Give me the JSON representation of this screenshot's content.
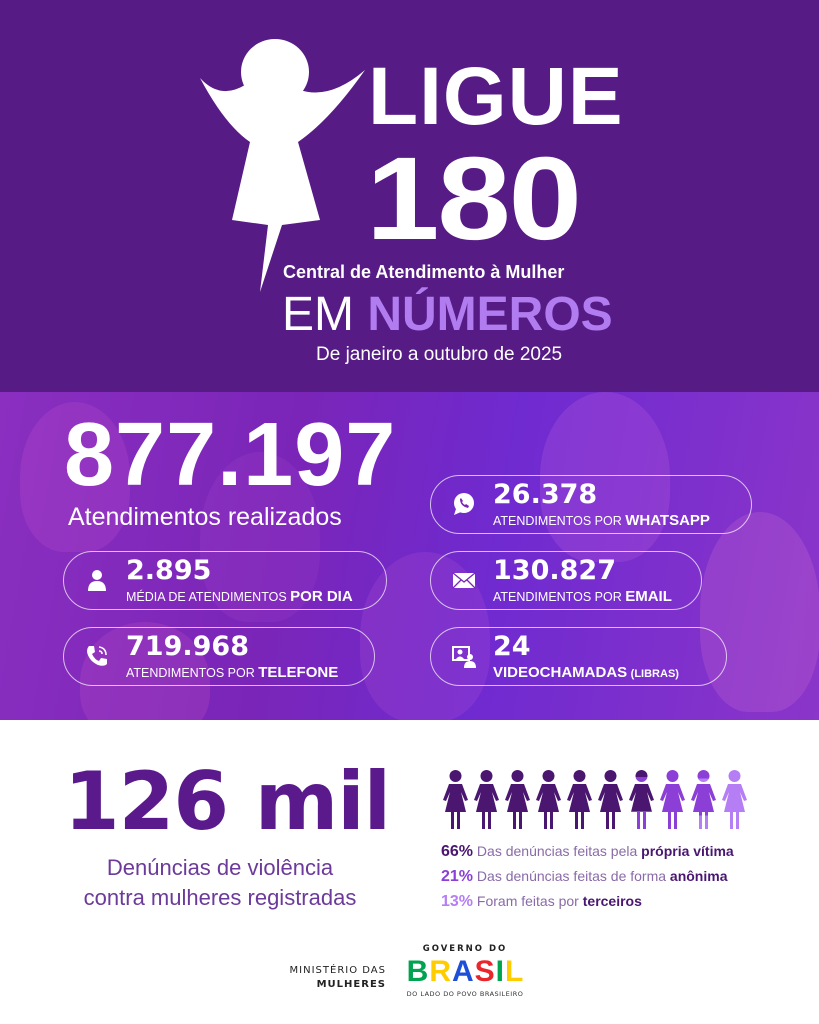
{
  "header": {
    "logo_title": "LIGUE",
    "logo_number": "180",
    "subtitle": "Central de Atendimento à Mulher",
    "em": "EM",
    "numeros": "NÚMEROS",
    "period": "De janeiro a outubro de 2025"
  },
  "total": {
    "value": "877.197",
    "label": "Atendimentos realizados"
  },
  "cards": [
    {
      "icon": "user-icon",
      "value": "2.895",
      "label": "MÉDIA DE ATENDIMENTOS",
      "highlight": "POR DIA"
    },
    {
      "icon": "phone-icon",
      "value": "719.968",
      "label": "ATENDIMENTOS POR",
      "highlight": "TELEFONE"
    },
    {
      "icon": "whatsapp-icon",
      "value": "26.378",
      "label": "ATENDIMENTOS POR",
      "highlight": "WHATSAPP"
    },
    {
      "icon": "email-icon",
      "value": "130.827",
      "label": "ATENDIMENTOS POR",
      "highlight": "EMAIL"
    },
    {
      "icon": "video-call-icon",
      "value": "24",
      "label": "VIDEOCHAMADAS",
      "highlight": "(LIBRAS)"
    }
  ],
  "complaints": {
    "value": "126 mil",
    "label_line1": "Denúncias de violência",
    "label_line2": "contra mulheres registradas",
    "breakdown": [
      {
        "pct": "66%",
        "text": "Das denúncias feitas pela",
        "bold": "própria vítima",
        "color": "#4a1670",
        "share": 66
      },
      {
        "pct": "21%",
        "text": "Das denúncias feitas de forma",
        "bold": "anônima",
        "color": "#8b3fd6",
        "share": 21
      },
      {
        "pct": "13%",
        "text": "Foram feitas por",
        "bold": "terceiros",
        "color": "#b57ef5",
        "share": 13
      }
    ]
  },
  "footer": {
    "ministry_line1": "MINISTÉRIO DAS",
    "ministry_line2": "MULHERES",
    "gov_top": "GOVERNO DO",
    "gov_brand": "BRASIL",
    "gov_bottom": "DO LADO DO POVO BRASILEIRO"
  },
  "colors": {
    "purple_dark": "#571b86",
    "accent": "#b07cf0"
  }
}
